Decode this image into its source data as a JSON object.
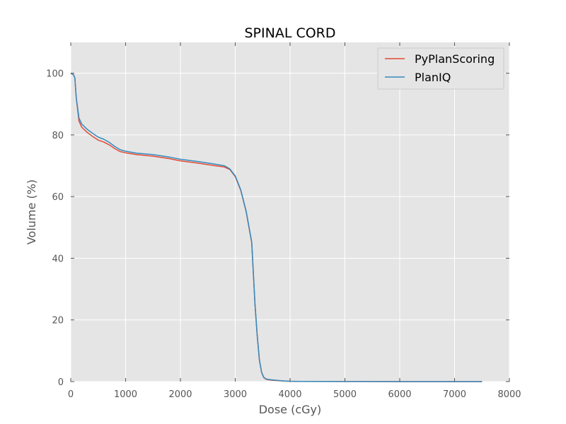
{
  "chart_data": {
    "type": "line",
    "title": "SPINAL CORD",
    "xlabel": "Dose (cGy)",
    "ylabel": "Volume (%)",
    "xlim": [
      0,
      8000
    ],
    "ylim": [
      0,
      110
    ],
    "xticks": [
      0,
      1000,
      2000,
      3000,
      4000,
      5000,
      6000,
      7000,
      8000
    ],
    "yticks": [
      0,
      20,
      40,
      60,
      80,
      100
    ],
    "grid": true,
    "legend_position": "top-right",
    "colors": {
      "plot_background": "#e5e5e5",
      "grid": "#ffffff"
    },
    "series": [
      {
        "name": "PyPlanScoring",
        "color": "#e24a33",
        "x": [
          0,
          50,
          75,
          100,
          150,
          200,
          300,
          400,
          500,
          600,
          700,
          800,
          900,
          1000,
          1200,
          1500,
          1800,
          2000,
          2300,
          2600,
          2800,
          2900,
          3000,
          3100,
          3200,
          3250,
          3300,
          3330,
          3360,
          3400,
          3440,
          3480,
          3520,
          3560,
          3600,
          3700,
          3800,
          3900,
          4000,
          4200,
          5000,
          6000,
          7000,
          7500
        ],
        "y": [
          100,
          99.5,
          98.5,
          92,
          84.5,
          82.5,
          80.8,
          79.5,
          78.3,
          77.7,
          76.8,
          75.6,
          74.6,
          74.2,
          73.6,
          73.1,
          72.3,
          71.6,
          70.9,
          70.1,
          69.6,
          68.8,
          66.5,
          62.0,
          55.0,
          50.0,
          45.0,
          35.0,
          25.0,
          15.0,
          7.0,
          3.0,
          1.3,
          0.8,
          0.6,
          0.4,
          0.3,
          0.15,
          0.1,
          0.05,
          0.02,
          0.01,
          0.0,
          0.0
        ]
      },
      {
        "name": "PlanIQ",
        "color": "#348abd",
        "x": [
          0,
          50,
          75,
          100,
          150,
          200,
          300,
          400,
          500,
          600,
          700,
          800,
          900,
          1000,
          1200,
          1500,
          1800,
          2000,
          2300,
          2600,
          2800,
          2900,
          3000,
          3100,
          3200,
          3250,
          3300,
          3330,
          3360,
          3400,
          3440,
          3480,
          3520,
          3560,
          3600,
          3700,
          3800,
          3900,
          4000,
          4200,
          5000,
          6000,
          7000,
          7500
        ],
        "y": [
          100,
          99.5,
          98.5,
          92,
          85.5,
          83.5,
          81.8,
          80.5,
          79.3,
          78.6,
          77.6,
          76.3,
          75.2,
          74.7,
          74.1,
          73.6,
          72.8,
          72.1,
          71.4,
          70.6,
          70.0,
          69.0,
          66.7,
          62.2,
          55.2,
          50.2,
          45.2,
          35.2,
          25.2,
          15.2,
          7.2,
          3.1,
          1.4,
          0.9,
          0.7,
          0.5,
          0.35,
          0.2,
          0.12,
          0.06,
          0.02,
          0.01,
          0.0,
          0.0
        ]
      }
    ]
  }
}
